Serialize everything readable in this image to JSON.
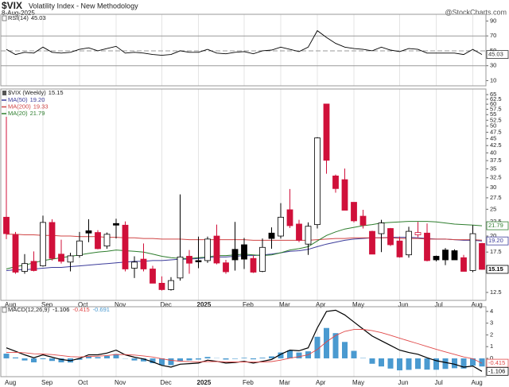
{
  "header": {
    "symbol": "$VIX",
    "name": "Volatility Index - New Methodology",
    "date": "8-Aug-2025",
    "credit": "@StockCharts.com"
  },
  "chart_data": [
    {
      "type": "line",
      "title": "RSI(14)",
      "color": "#000000",
      "values": [
        52,
        45,
        48,
        47,
        55,
        48,
        47,
        48,
        52,
        54,
        50,
        53,
        56,
        47,
        48,
        47,
        45,
        44,
        45,
        50,
        48,
        48,
        52,
        47,
        46,
        48,
        49,
        46,
        50,
        51,
        55,
        52,
        49,
        55,
        77,
        68,
        60,
        55,
        53,
        52,
        50,
        55,
        51,
        49,
        53,
        52,
        47,
        47,
        47,
        47,
        45,
        52,
        45.03
      ],
      "ylim": [
        3,
        99
      ],
      "yticks": [
        10,
        30,
        50,
        70,
        90
      ],
      "levels": [
        30,
        70
      ],
      "dashed_levels": [
        50
      ]
    },
    {
      "type": "candlestick",
      "title": "$VIX (Weekly)",
      "log_scale": true,
      "categories": [
        "Aug",
        null,
        null,
        null,
        "Sep",
        null,
        null,
        null,
        "Oct",
        null,
        null,
        null,
        "Nov",
        null,
        null,
        null,
        null,
        "Dec",
        null,
        null,
        null,
        "2025",
        null,
        null,
        null,
        null,
        "Feb",
        null,
        null,
        null,
        "Mar",
        null,
        null,
        null,
        "Apr",
        null,
        null,
        null,
        "May",
        null,
        null,
        null,
        null,
        "Jun",
        null,
        null,
        null,
        "Jul",
        null,
        null,
        null,
        "Aug",
        null
      ],
      "open": [
        23.4,
        20.2,
        14.9,
        16.2,
        15.6,
        22.4,
        17.2,
        16.1,
        17.0,
        20.9,
        20.6,
        18.4,
        22.2,
        21.9,
        15.3,
        16.5,
        15.2,
        13.5,
        12.8,
        14.1,
        16.9,
        16.3,
        16.3,
        20.0,
        16.0,
        17.9,
        18.6,
        16.6,
        14.9,
        20.5,
        20.0,
        24.9,
        22.1,
        18.7,
        22.0,
        60.1,
        33.0,
        32.0,
        26.5,
        23.6,
        20.8,
        20.4,
        21.3,
        19.2,
        17.1,
        20.2,
        20.5,
        16.9,
        17.8,
        17.7,
        16.7,
        15.0,
        18.8
      ],
      "high": [
        54.0,
        20.7,
        17.2,
        17.6,
        23.7,
        23.0,
        19.4,
        17.4,
        20.7,
        23.0,
        21.0,
        20.6,
        23.1,
        22.6,
        16.9,
        18.8,
        15.6,
        14.3,
        14.2,
        28.3,
        17.8,
        19.9,
        19.9,
        22.0,
        16.4,
        22.5,
        19.7,
        17.0,
        19.6,
        21.5,
        26.3,
        29.6,
        22.9,
        22.4,
        45.6,
        60.1,
        33.4,
        35.1,
        26.5,
        24.9,
        20.9,
        22.9,
        21.4,
        19.9,
        21.6,
        22.5,
        22.2,
        17.0,
        18.1,
        17.9,
        17.1,
        21.9,
        18.9
      ],
      "low": [
        19.5,
        14.6,
        14.6,
        14.9,
        15.5,
        16.3,
        15.9,
        14.9,
        16.7,
        19.0,
        17.9,
        18.0,
        19.6,
        14.9,
        14.1,
        14.9,
        13.5,
        12.7,
        12.7,
        13.8,
        14.6,
        15.3,
        16.0,
        15.8,
        14.6,
        15.0,
        15.2,
        14.7,
        14.8,
        18.0,
        19.6,
        21.4,
        19.0,
        17.1,
        21.3,
        33.6,
        28.7,
        24.8,
        22.4,
        21.3,
        17.2,
        17.5,
        18.4,
        16.7,
        16.7,
        19.8,
        16.2,
        16.2,
        15.7,
        16.4,
        14.9,
        14.8,
        15.1
      ],
      "close": [
        20.4,
        14.8,
        15.9,
        15.0,
        22.4,
        16.6,
        16.2,
        16.96,
        19.2,
        20.5,
        18.0,
        20.3,
        21.9,
        15.2,
        16.1,
        15.2,
        13.5,
        12.8,
        13.8,
        16.8,
        15.95,
        16.13,
        19.5,
        15.97,
        14.85,
        16.4,
        16.5,
        14.8,
        18.2,
        19.6,
        23.4,
        21.8,
        19.3,
        21.7,
        45.3,
        37.6,
        29.7,
        24.8,
        22.7,
        21.9,
        17.2,
        22.3,
        18.6,
        16.8,
        20.8,
        20.6,
        16.3,
        16.4,
        16.4,
        16.4,
        14.9,
        20.4,
        15.15
      ],
      "up_color": "#000000",
      "down_color": "#d0103a",
      "series": [
        {
          "name": "MA(50)",
          "color": "#3b3b9a",
          "last_label": "19.20",
          "values": [
            15.0,
            15.1,
            15.1,
            15.2,
            15.3,
            15.4,
            15.4,
            15.5,
            15.6,
            15.7,
            15.8,
            15.9,
            16.0,
            16.1,
            16.2,
            16.2,
            16.3,
            16.3,
            16.4,
            16.5,
            16.5,
            16.6,
            16.7,
            16.8,
            16.8,
            16.9,
            17.0,
            17.0,
            17.1,
            17.2,
            17.4,
            17.6,
            17.7,
            17.9,
            18.3,
            18.7,
            19.0,
            19.3,
            19.5,
            19.6,
            19.7,
            19.7,
            19.8,
            19.8,
            19.8,
            19.7,
            19.6,
            19.5,
            19.5,
            19.4,
            19.3,
            19.3,
            19.2
          ]
        },
        {
          "name": "MA(200)",
          "color": "#d04545",
          "values": [
            20.3,
            20.3,
            20.2,
            20.2,
            20.1,
            20.1,
            20.0,
            20.0,
            19.9,
            19.9,
            19.9,
            19.8,
            19.8,
            19.7,
            19.7,
            19.6,
            19.6,
            19.5,
            19.5,
            19.5,
            19.4,
            19.4,
            19.4,
            19.4,
            19.4,
            19.4,
            19.4,
            19.3,
            19.3,
            19.3,
            19.3,
            19.3,
            19.3,
            19.3,
            19.4,
            19.5,
            19.6,
            19.6,
            19.7,
            19.7,
            19.7,
            19.7,
            19.7,
            19.6,
            19.6,
            19.6,
            19.5,
            19.5,
            19.5,
            19.4,
            19.4,
            19.4,
            19.33
          ]
        },
        {
          "name": "MA(20)",
          "color": "#2d7d2d",
          "values": [
            15.2,
            15.5,
            15.7,
            16.0,
            16.3,
            16.5,
            16.7,
            16.9,
            17.1,
            17.3,
            17.5,
            17.6,
            17.8,
            17.7,
            17.6,
            17.5,
            17.2,
            16.9,
            16.7,
            16.6,
            16.6,
            16.7,
            16.8,
            17.0,
            17.0,
            17.1,
            17.2,
            17.1,
            17.0,
            17.1,
            17.4,
            17.8,
            18.0,
            18.3,
            19.2,
            20.1,
            20.7,
            21.2,
            21.5,
            21.8,
            22.0,
            22.3,
            22.4,
            22.5,
            22.6,
            22.6,
            22.6,
            22.5,
            22.3,
            22.1,
            22.0,
            21.9,
            21.79
          ]
        }
      ],
      "ylim": [
        11.7,
        68.1
      ],
      "yticks": [
        12.5,
        15,
        17.5,
        20,
        22.5,
        25,
        27.5,
        30,
        32.5,
        35,
        37.5,
        40,
        42.5,
        45,
        47.5,
        50,
        52.5,
        55,
        57.5,
        60,
        62.5,
        65
      ]
    },
    {
      "type": "macd",
      "title": "MACD(12,26,9)",
      "series": [
        {
          "color": "#000000",
          "values": [
            0.9,
            0.6,
            0.3,
            0.05,
            0.3,
            0.1,
            -0.1,
            -0.2,
            0.0,
            0.3,
            0.3,
            0.45,
            0.7,
            0.3,
            0.1,
            -0.05,
            -0.3,
            -0.6,
            -0.75,
            -0.5,
            -0.45,
            -0.4,
            -0.15,
            -0.25,
            -0.4,
            -0.35,
            -0.25,
            -0.4,
            -0.25,
            -0.1,
            0.35,
            0.7,
            0.65,
            0.9,
            2.6,
            4.0,
            4.1,
            3.7,
            3.1,
            2.5,
            1.9,
            1.5,
            1.1,
            0.7,
            0.5,
            0.35,
            0.05,
            -0.2,
            -0.35,
            -0.5,
            -0.75,
            -0.65,
            -1.106
          ]
        },
        {
          "color": "#e04848",
          "values": [
            0.5,
            0.52,
            0.48,
            0.39,
            0.37,
            0.32,
            0.24,
            0.15,
            0.12,
            0.16,
            0.19,
            0.24,
            0.33,
            0.32,
            0.28,
            0.21,
            0.11,
            -0.03,
            -0.17,
            -0.24,
            -0.28,
            -0.3,
            -0.27,
            -0.27,
            -0.3,
            -0.31,
            -0.3,
            -0.32,
            -0.31,
            -0.27,
            -0.15,
            0.02,
            0.15,
            0.3,
            0.76,
            1.41,
            1.95,
            2.3,
            2.46,
            2.47,
            2.36,
            2.19,
            1.97,
            1.72,
            1.48,
            1.25,
            1.01,
            0.77,
            0.55,
            0.34,
            0.12,
            -0.03,
            -0.415
          ]
        },
        {
          "type": "histogram",
          "color": "#4a9ad0",
          "values": [
            0.4,
            0.08,
            -0.18,
            -0.34,
            -0.07,
            -0.22,
            -0.34,
            -0.35,
            -0.12,
            0.14,
            0.11,
            0.21,
            0.37,
            -0.02,
            -0.18,
            -0.26,
            -0.41,
            -0.57,
            -0.58,
            -0.26,
            -0.17,
            -0.1,
            0.12,
            0.02,
            -0.1,
            -0.04,
            0.05,
            -0.08,
            0.06,
            0.17,
            0.5,
            0.68,
            0.5,
            0.6,
            1.84,
            2.59,
            2.15,
            1.4,
            0.64,
            0.03,
            -0.46,
            -0.69,
            -0.87,
            -1.02,
            -0.98,
            -0.9,
            -0.96,
            -0.97,
            -0.9,
            -0.84,
            -0.87,
            -0.62,
            -0.691
          ]
        }
      ],
      "ylim": [
        -1.56,
        4.4
      ],
      "yticks": [
        0,
        1,
        2,
        3,
        4
      ]
    }
  ]
}
